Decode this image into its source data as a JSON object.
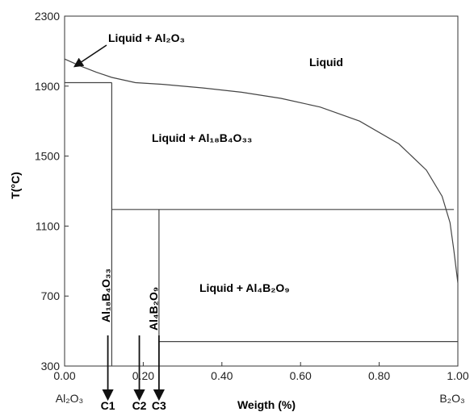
{
  "chart_data": {
    "type": "line",
    "xlabel": "Weigth (%)",
    "ylabel": "T(°C)",
    "xlim": [
      0.0,
      1.0
    ],
    "ylim": [
      300,
      2300
    ],
    "x_ticks": [
      "0.00",
      "0.20",
      "0.40",
      "0.60",
      "0.80",
      "1.00"
    ],
    "y_ticks": [
      "300",
      "700",
      "1100",
      "1500",
      "1900",
      "2300"
    ],
    "x_end_labels": {
      "left": "Al₂O₃",
      "right": "B₂O₃"
    },
    "region_labels": {
      "liquid": "Liquid",
      "liquid_al2o3": "Liquid + Al₂O₃",
      "liquid_al18b4o33": "Liquid + Al₁₈B₄O₃₃",
      "liquid_al4b2o9": "Liquid + Al₄B₂O₉"
    },
    "compound_labels": {
      "al18b4o33": "Al₁₈B₄O₃₃",
      "al4b2o9": "Al₄B₂O₉"
    },
    "composition_markers": [
      {
        "label": "C1",
        "x": 0.11
      },
      {
        "label": "C2",
        "x": 0.19
      },
      {
        "label": "C3",
        "x": 0.24
      }
    ],
    "series": [
      {
        "type": "liquidus",
        "x": [
          0.0,
          0.04,
          0.08,
          0.12,
          0.18,
          0.25,
          0.35,
          0.45,
          0.55,
          0.65,
          0.75,
          0.85,
          0.92,
          0.96,
          0.98,
          0.99,
          1.0
        ],
        "y": [
          2055,
          2015,
          1980,
          1950,
          1920,
          1910,
          1890,
          1865,
          1830,
          1780,
          1700,
          1570,
          1420,
          1270,
          1120,
          960,
          775
        ]
      },
      {
        "type": "solidus",
        "x": [
          0.0,
          0.12
        ],
        "y": [
          1920,
          1920
        ]
      },
      {
        "type": "solidus",
        "x": [
          0.12,
          0.99
        ],
        "y": [
          1195,
          1195
        ]
      },
      {
        "type": "solidus",
        "x": [
          0.24,
          1.0
        ],
        "y": [
          440,
          440
        ]
      },
      {
        "type": "compound",
        "x": [
          0.12,
          0.12
        ],
        "y": [
          300,
          1920
        ]
      },
      {
        "type": "compound",
        "x": [
          0.24,
          0.24
        ],
        "y": [
          440,
          1195
        ]
      }
    ]
  }
}
